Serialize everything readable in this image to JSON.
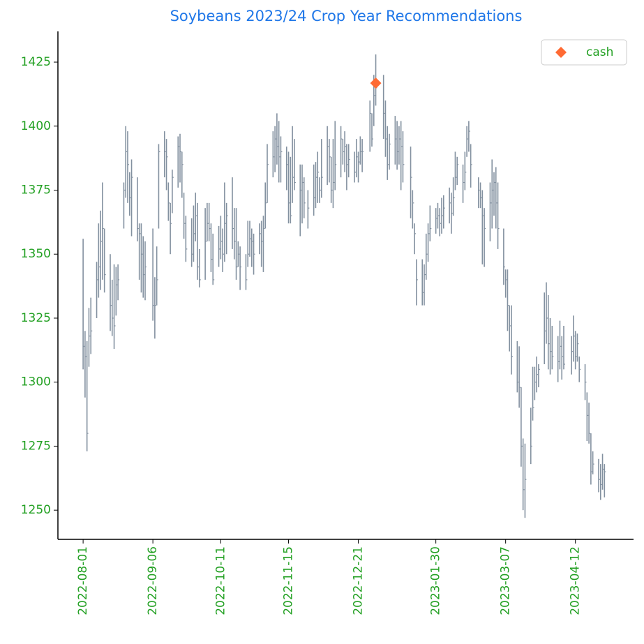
{
  "chart_data": {
    "type": "ohlc",
    "title": "Soybeans 2023/24 Crop Year Recommendations",
    "color": "#8391a0",
    "x": [
      "2022-08-01",
      "2022-08-02",
      "2022-08-03",
      "2022-08-04",
      "2022-08-05",
      "2022-08-08",
      "2022-08-09",
      "2022-08-10",
      "2022-08-11",
      "2022-08-12",
      "2022-08-15",
      "2022-08-16",
      "2022-08-17",
      "2022-08-18",
      "2022-08-19",
      "2022-08-22",
      "2022-08-23",
      "2022-08-24",
      "2022-08-25",
      "2022-08-26",
      "2022-08-29",
      "2022-08-30",
      "2022-08-31",
      "2022-09-01",
      "2022-09-02",
      "2022-09-06",
      "2022-09-07",
      "2022-09-08",
      "2022-09-09",
      "2022-09-12",
      "2022-09-13",
      "2022-09-14",
      "2022-09-15",
      "2022-09-16",
      "2022-09-19",
      "2022-09-20",
      "2022-09-21",
      "2022-09-22",
      "2022-09-23",
      "2022-09-26",
      "2022-09-27",
      "2022-09-28",
      "2022-09-29",
      "2022-09-30",
      "2022-10-03",
      "2022-10-04",
      "2022-10-05",
      "2022-10-06",
      "2022-10-07",
      "2022-10-10",
      "2022-10-11",
      "2022-10-12",
      "2022-10-13",
      "2022-10-14",
      "2022-10-17",
      "2022-10-18",
      "2022-10-19",
      "2022-10-20",
      "2022-10-21",
      "2022-10-24",
      "2022-10-25",
      "2022-10-26",
      "2022-10-27",
      "2022-10-28",
      "2022-10-31",
      "2022-11-01",
      "2022-11-02",
      "2022-11-03",
      "2022-11-04",
      "2022-11-07",
      "2022-11-08",
      "2022-11-09",
      "2022-11-10",
      "2022-11-11",
      "2022-11-14",
      "2022-11-15",
      "2022-11-16",
      "2022-11-17",
      "2022-11-18",
      "2022-11-21",
      "2022-11-22",
      "2022-11-23",
      "2022-11-25",
      "2022-11-28",
      "2022-11-29",
      "2022-11-30",
      "2022-12-01",
      "2022-12-02",
      "2022-12-05",
      "2022-12-06",
      "2022-12-07",
      "2022-12-08",
      "2022-12-09",
      "2022-12-12",
      "2022-12-13",
      "2022-12-14",
      "2022-12-15",
      "2022-12-16",
      "2022-12-19",
      "2022-12-20",
      "2022-12-21",
      "2022-12-22",
      "2022-12-23",
      "2022-12-27",
      "2022-12-28",
      "2022-12-29",
      "2022-12-30",
      "2023-01-03",
      "2023-01-04",
      "2023-01-05",
      "2023-01-06",
      "2023-01-09",
      "2023-01-10",
      "2023-01-11",
      "2023-01-12",
      "2023-01-13",
      "2023-01-17",
      "2023-01-18",
      "2023-01-19",
      "2023-01-20",
      "2023-01-23",
      "2023-01-24",
      "2023-01-25",
      "2023-01-26",
      "2023-01-27",
      "2023-01-30",
      "2023-01-31",
      "2023-02-01",
      "2023-02-02",
      "2023-02-03",
      "2023-02-06",
      "2023-02-07",
      "2023-02-08",
      "2023-02-09",
      "2023-02-10",
      "2023-02-13",
      "2023-02-14",
      "2023-02-15",
      "2023-02-16",
      "2023-02-17",
      "2023-02-21",
      "2023-02-22",
      "2023-02-23",
      "2023-02-24",
      "2023-02-27",
      "2023-02-28",
      "2023-03-01",
      "2023-03-02",
      "2023-03-03",
      "2023-03-06",
      "2023-03-07",
      "2023-03-08",
      "2023-03-09",
      "2023-03-10",
      "2023-03-13",
      "2023-03-14",
      "2023-03-15",
      "2023-03-16",
      "2023-03-17",
      "2023-03-20",
      "2023-03-21",
      "2023-03-22",
      "2023-03-23",
      "2023-03-24",
      "2023-03-27",
      "2023-03-28",
      "2023-03-29",
      "2023-03-30",
      "2023-03-31",
      "2023-04-03",
      "2023-04-04",
      "2023-04-05",
      "2023-04-06",
      "2023-04-10",
      "2023-04-11",
      "2023-04-12",
      "2023-04-13",
      "2023-04-14",
      "2023-04-17",
      "2023-04-18",
      "2023-04-19",
      "2023-04-20",
      "2023-04-21",
      "2023-04-24",
      "2023-04-25",
      "2023-04-26",
      "2023-04-27"
    ],
    "high": [
      1356,
      1320,
      1316,
      1329,
      1333,
      1347,
      1362,
      1367,
      1378,
      1360,
      1350,
      1340,
      1346,
      1345,
      1346,
      1378,
      1400,
      1398,
      1382,
      1387,
      1380,
      1362,
      1362,
      1357,
      1355,
      1360,
      1341,
      1353,
      1393,
      1398,
      1395,
      1378,
      1370,
      1383,
      1396,
      1397,
      1390,
      1374,
      1365,
      1364,
      1369,
      1374,
      1370,
      1352,
      1368,
      1370,
      1370,
      1362,
      1358,
      1361,
      1365,
      1360,
      1378,
      1370,
      1380,
      1368,
      1368,
      1355,
      1353,
      1350,
      1363,
      1363,
      1360,
      1358,
      1362,
      1363,
      1365,
      1378,
      1393,
      1398,
      1400,
      1405,
      1402,
      1396,
      1392,
      1390,
      1388,
      1400,
      1395,
      1385,
      1385,
      1380,
      1375,
      1385,
      1386,
      1390,
      1380,
      1395,
      1400,
      1395,
      1388,
      1395,
      1402,
      1400,
      1395,
      1398,
      1393,
      1393,
      1390,
      1395,
      1390,
      1396,
      1395,
      1410,
      1405,
      1420,
      1428,
      1420,
      1410,
      1400,
      1397,
      1404,
      1402,
      1400,
      1402,
      1398,
      1392,
      1375,
      1362,
      1348,
      1348,
      1346,
      1358,
      1362,
      1369,
      1368,
      1370,
      1368,
      1372,
      1373,
      1376,
      1374,
      1380,
      1390,
      1388,
      1385,
      1390,
      1400,
      1402,
      1393,
      1380,
      1378,
      1375,
      1368,
      1378,
      1387,
      1382,
      1384,
      1378,
      1360,
      1344,
      1344,
      1330,
      1330,
      1316,
      1314,
      1298,
      1278,
      1276,
      1290,
      1306,
      1306,
      1310,
      1307,
      1335,
      1339,
      1334,
      1325,
      1322,
      1318,
      1324,
      1318,
      1322,
      1318,
      1326,
      1320,
      1319,
      1310,
      1307,
      1296,
      1292,
      1280,
      1273,
      1270,
      1268,
      1272,
      1268
    ],
    "low": [
      1305,
      1294,
      1273,
      1306,
      1311,
      1325,
      1333,
      1336,
      1340,
      1335,
      1320,
      1318,
      1313,
      1326,
      1332,
      1360,
      1372,
      1370,
      1365,
      1357,
      1355,
      1340,
      1335,
      1333,
      1332,
      1324,
      1317,
      1330,
      1360,
      1380,
      1375,
      1363,
      1350,
      1366,
      1376,
      1378,
      1372,
      1356,
      1347,
      1345,
      1347,
      1355,
      1340,
      1337,
      1340,
      1355,
      1355,
      1343,
      1338,
      1345,
      1348,
      1343,
      1347,
      1350,
      1352,
      1348,
      1340,
      1345,
      1336,
      1336,
      1345,
      1349,
      1345,
      1342,
      1350,
      1345,
      1343,
      1360,
      1370,
      1380,
      1382,
      1385,
      1378,
      1378,
      1375,
      1362,
      1362,
      1370,
      1375,
      1357,
      1362,
      1364,
      1360,
      1365,
      1368,
      1370,
      1370,
      1372,
      1377,
      1378,
      1370,
      1368,
      1375,
      1380,
      1385,
      1382,
      1375,
      1380,
      1378,
      1380,
      1378,
      1385,
      1382,
      1390,
      1392,
      1400,
      1408,
      1395,
      1388,
      1379,
      1383,
      1385,
      1383,
      1385,
      1375,
      1378,
      1364,
      1360,
      1350,
      1330,
      1330,
      1330,
      1340,
      1347,
      1355,
      1358,
      1360,
      1357,
      1358,
      1360,
      1362,
      1358,
      1365,
      1375,
      1377,
      1370,
      1375,
      1388,
      1390,
      1376,
      1368,
      1368,
      1346,
      1345,
      1355,
      1360,
      1365,
      1360,
      1352,
      1338,
      1333,
      1320,
      1312,
      1303,
      1296,
      1290,
      1267,
      1250,
      1247,
      1268,
      1285,
      1293,
      1296,
      1298,
      1307,
      1315,
      1305,
      1303,
      1305,
      1300,
      1305,
      1301,
      1305,
      1303,
      1308,
      1305,
      1308,
      1300,
      1293,
      1277,
      1276,
      1260,
      1264,
      1257,
      1254,
      1258,
      1255
    ],
    "close": [
      1314,
      1310,
      1280,
      1318,
      1320,
      1340,
      1345,
      1355,
      1360,
      1342,
      1330,
      1325,
      1322,
      1338,
      1340,
      1375,
      1390,
      1385,
      1372,
      1380,
      1360,
      1358,
      1350,
      1342,
      1345,
      1330,
      1330,
      1340,
      1390,
      1390,
      1388,
      1370,
      1362,
      1380,
      1392,
      1390,
      1385,
      1362,
      1352,
      1350,
      1358,
      1365,
      1345,
      1340,
      1355,
      1362,
      1360,
      1348,
      1340,
      1352,
      1355,
      1350,
      1362,
      1365,
      1360,
      1355,
      1345,
      1350,
      1345,
      1340,
      1350,
      1356,
      1355,
      1350,
      1358,
      1355,
      1360,
      1370,
      1385,
      1388,
      1395,
      1392,
      1388,
      1390,
      1385,
      1370,
      1365,
      1380,
      1378,
      1375,
      1378,
      1370,
      1368,
      1372,
      1380,
      1382,
      1375,
      1380,
      1392,
      1388,
      1375,
      1378,
      1385,
      1395,
      1390,
      1392,
      1385,
      1387,
      1382,
      1388,
      1386,
      1390,
      1390,
      1405,
      1395,
      1412,
      1415,
      1405,
      1395,
      1385,
      1393,
      1395,
      1390,
      1395,
      1392,
      1385,
      1380,
      1370,
      1358,
      1340,
      1335,
      1342,
      1350,
      1358,
      1360,
      1364,
      1365,
      1362,
      1365,
      1368,
      1370,
      1366,
      1372,
      1380,
      1385,
      1378,
      1382,
      1395,
      1398,
      1385,
      1375,
      1372,
      1365,
      1360,
      1370,
      1375,
      1378,
      1370,
      1360,
      1345,
      1340,
      1330,
      1322,
      1310,
      1300,
      1298,
      1275,
      1258,
      1262,
      1275,
      1290,
      1300,
      1303,
      1305,
      1320,
      1325,
      1315,
      1312,
      1310,
      1308,
      1314,
      1310,
      1307,
      1312,
      1318,
      1310,
      1315,
      1305,
      1300,
      1287,
      1280,
      1265,
      1268,
      1262,
      1260,
      1266,
      1265
    ],
    "markers": [
      {
        "name": "cash",
        "color": "#ff6a33",
        "x": "2022-12-30",
        "value": 1416.8
      }
    ],
    "legend": "upper right",
    "xlim": [
      "2022-07-19",
      "2023-05-12"
    ],
    "xticks": [
      "2022-08-01",
      "2022-09-06",
      "2022-10-11",
      "2022-11-15",
      "2022-12-21",
      "2023-01-30",
      "2023-03-07",
      "2023-04-12"
    ],
    "ylim": [
      1238.6,
      1437
    ],
    "yticks": [
      1250,
      1275,
      1300,
      1325,
      1350,
      1375,
      1400,
      1425
    ]
  }
}
